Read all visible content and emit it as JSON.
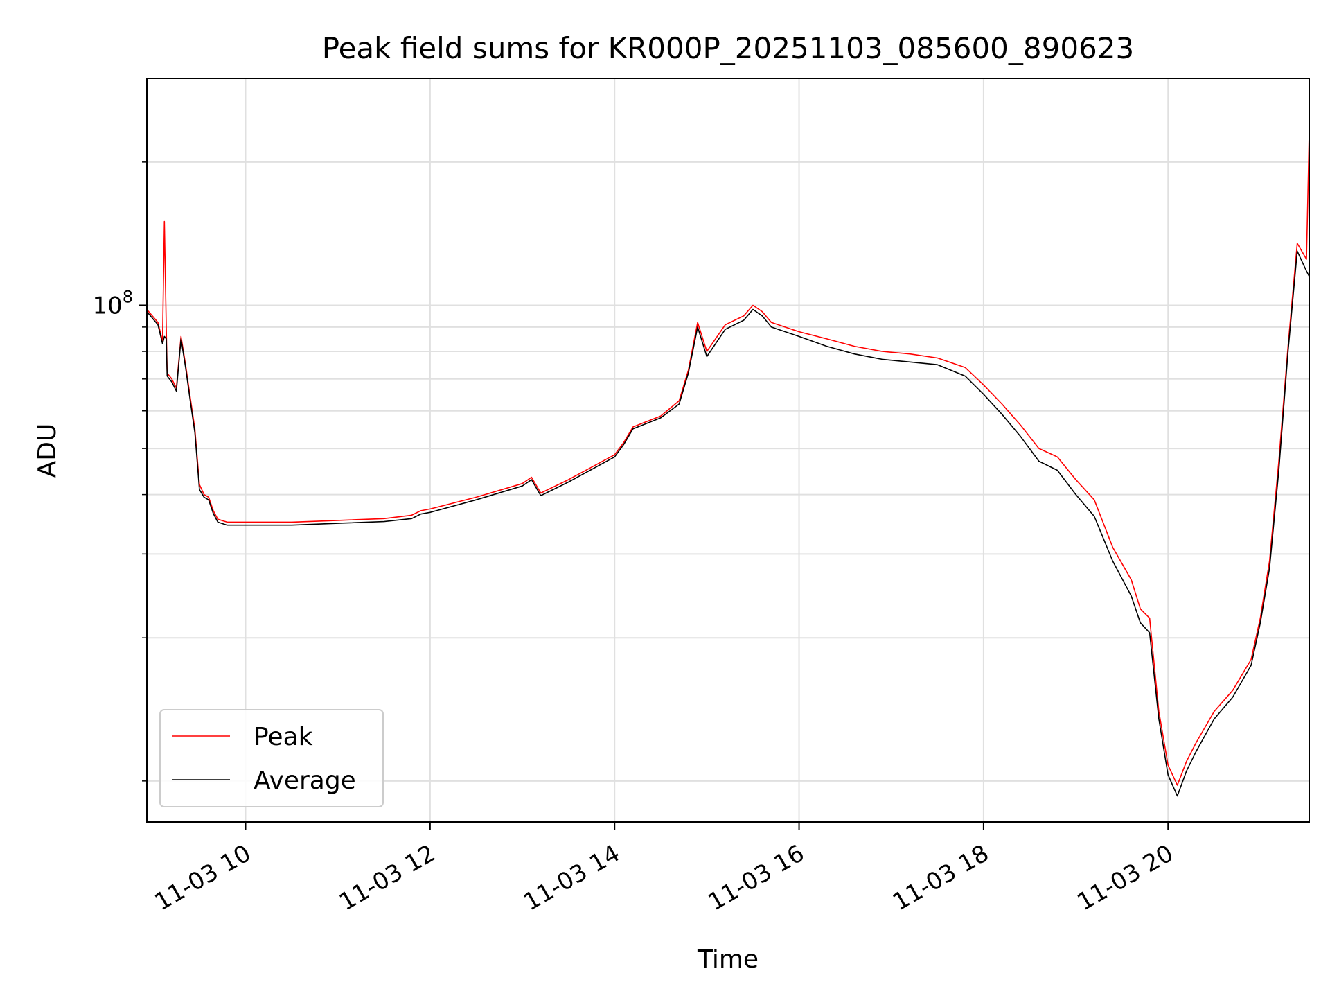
{
  "chart_data": {
    "type": "line",
    "title": "Peak field sums for KR000P_20251103_085600_890623",
    "xlabel": "Time",
    "ylabel": "ADU",
    "yscale": "log",
    "ylim": [
      8200000,
      300000000
    ],
    "xlim_hours": [
      8.93,
      21.53
    ],
    "grid": true,
    "x_tick_hours": [
      10,
      12,
      14,
      16,
      18,
      20
    ],
    "x_tick_labels": [
      "11-03 10",
      "11-03 12",
      "11-03 14",
      "11-03 16",
      "11-03 18",
      "11-03 20"
    ],
    "y_major_tick_value": 100000000,
    "y_major_tick_label_base": "10",
    "y_major_tick_label_exp": "8",
    "y_minor_tick_values": [
      10000000,
      20000000,
      30000000,
      40000000,
      50000000,
      60000000,
      70000000,
      80000000,
      90000000,
      200000000
    ],
    "legend_position": "lower-left",
    "x": [
      8.93,
      9.05,
      9.1,
      9.12,
      9.14,
      9.15,
      9.2,
      9.25,
      9.3,
      9.35,
      9.4,
      9.45,
      9.5,
      9.55,
      9.6,
      9.65,
      9.7,
      9.8,
      10.0,
      10.5,
      11.0,
      11.5,
      11.8,
      11.9,
      12.0,
      12.5,
      13.0,
      13.1,
      13.2,
      13.5,
      14.0,
      14.1,
      14.2,
      14.5,
      14.7,
      14.8,
      14.9,
      15.0,
      15.2,
      15.4,
      15.5,
      15.6,
      15.7,
      16.0,
      16.3,
      16.6,
      16.9,
      17.2,
      17.5,
      17.8,
      18.0,
      18.2,
      18.4,
      18.6,
      18.8,
      19.0,
      19.2,
      19.4,
      19.6,
      19.7,
      19.8,
      19.9,
      20.0,
      20.1,
      20.2,
      20.3,
      20.5,
      20.7,
      20.9,
      21.0,
      21.1,
      21.2,
      21.3,
      21.4,
      21.5,
      21.53
    ],
    "series": [
      {
        "name": "Peak",
        "color": "#ff0000",
        "values": [
          98000000,
          92000000,
          84000000,
          150000000,
          90000000,
          72000000,
          70000000,
          67000000,
          86000000,
          75000000,
          64000000,
          55000000,
          42000000,
          40000000,
          39500000,
          37000000,
          35500000,
          35000000,
          35000000,
          35000000,
          35300000,
          35600000,
          36200000,
          37000000,
          37300000,
          39500000,
          42200000,
          43500000,
          40300000,
          43000000,
          48500000,
          51500000,
          55500000,
          58500000,
          63000000,
          73000000,
          92000000,
          80000000,
          91000000,
          95000000,
          100000000,
          97000000,
          92000000,
          88000000,
          85000000,
          82000000,
          80000000,
          79000000,
          77500000,
          74000000,
          68000000,
          62000000,
          56000000,
          50000000,
          48000000,
          43000000,
          39000000,
          31000000,
          26500000,
          23000000,
          22000000,
          14000000,
          10800000,
          9800000,
          11000000,
          12000000,
          14000000,
          15500000,
          18000000,
          22000000,
          29000000,
          47000000,
          82000000,
          135000000,
          125000000,
          230000000
        ]
      },
      {
        "name": "Average",
        "color": "#000000",
        "values": [
          97000000,
          91000000,
          83000000,
          86000000,
          85000000,
          71000000,
          69000000,
          66000000,
          85000000,
          74000000,
          63000000,
          54000000,
          41000000,
          39500000,
          39000000,
          36500000,
          35000000,
          34500000,
          34500000,
          34500000,
          34800000,
          35100000,
          35600000,
          36400000,
          36700000,
          39000000,
          41700000,
          43000000,
          39800000,
          42500000,
          48000000,
          51000000,
          55000000,
          58000000,
          62000000,
          72000000,
          90000000,
          78000000,
          89000000,
          93000000,
          98000000,
          95000000,
          90000000,
          86000000,
          82000000,
          79000000,
          77000000,
          76000000,
          75000000,
          71000000,
          65000000,
          59000000,
          53000000,
          47000000,
          45000000,
          40000000,
          36000000,
          29000000,
          24500000,
          21500000,
          20500000,
          13500000,
          10300000,
          9300000,
          10500000,
          11500000,
          13500000,
          15000000,
          17500000,
          21500000,
          28000000,
          45000000,
          80000000,
          130000000,
          118000000,
          115000000
        ]
      }
    ]
  }
}
